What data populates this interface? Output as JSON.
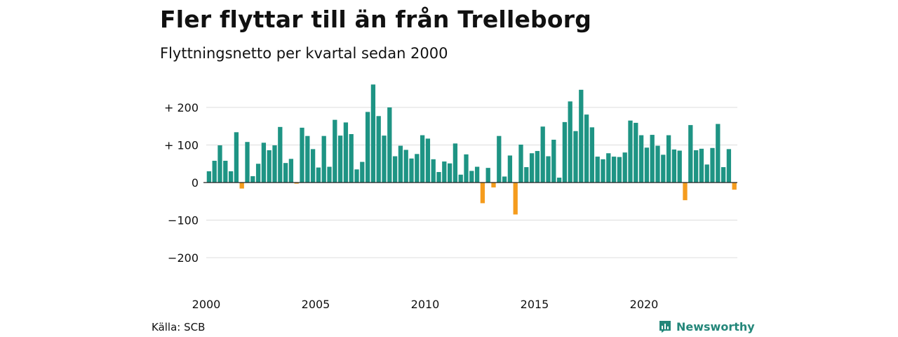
{
  "title": "Fler flyttar till än från Trelleborg",
  "subtitle": "Flyttningsnetto per kvartal sedan 2000",
  "source": "Källa: SCB",
  "brand": {
    "name": "Newsworthy",
    "icon": "newsworthy-logo-icon",
    "color": "#24877a"
  },
  "colors": {
    "positive": "#1e9484",
    "negative": "#f59c1d",
    "grid": "#dddddd",
    "zero_line": "#222222"
  },
  "chart_data": {
    "type": "bar",
    "title": "Fler flyttar till än från Trelleborg",
    "subtitle": "Flyttningsnetto per kvartal sedan 2000",
    "xlabel": "",
    "ylabel": "",
    "ylim": [
      -250,
      270
    ],
    "grid": true,
    "legend": "none",
    "x_start": "2000 Q1",
    "x_ticks": [
      "2000",
      "2005",
      "2010",
      "2015",
      "2020"
    ],
    "y_ticks": [
      {
        "value": 200,
        "label": "+ 200"
      },
      {
        "value": 100,
        "label": "+ 100"
      },
      {
        "value": 0,
        "label": "0"
      },
      {
        "value": -100,
        "label": "−100"
      },
      {
        "value": -200,
        "label": "−200"
      }
    ],
    "values": [
      30,
      58,
      99,
      58,
      30,
      134,
      -16,
      108,
      17,
      50,
      106,
      86,
      99,
      148,
      52,
      63,
      -3,
      146,
      124,
      89,
      40,
      124,
      42,
      167,
      125,
      160,
      129,
      35,
      55,
      188,
      261,
      177,
      125,
      200,
      70,
      98,
      87,
      64,
      76,
      126,
      117,
      62,
      28,
      56,
      51,
      104,
      21,
      75,
      31,
      42,
      -55,
      39,
      -13,
      124,
      16,
      72,
      -85,
      101,
      41,
      78,
      84,
      149,
      70,
      114,
      13,
      161,
      216,
      137,
      247,
      181,
      147,
      69,
      62,
      78,
      69,
      68,
      80,
      165,
      159,
      126,
      93,
      127,
      98,
      74,
      126,
      88,
      85,
      -47,
      153,
      86,
      90,
      48,
      92,
      156,
      41,
      89,
      -19
    ]
  }
}
